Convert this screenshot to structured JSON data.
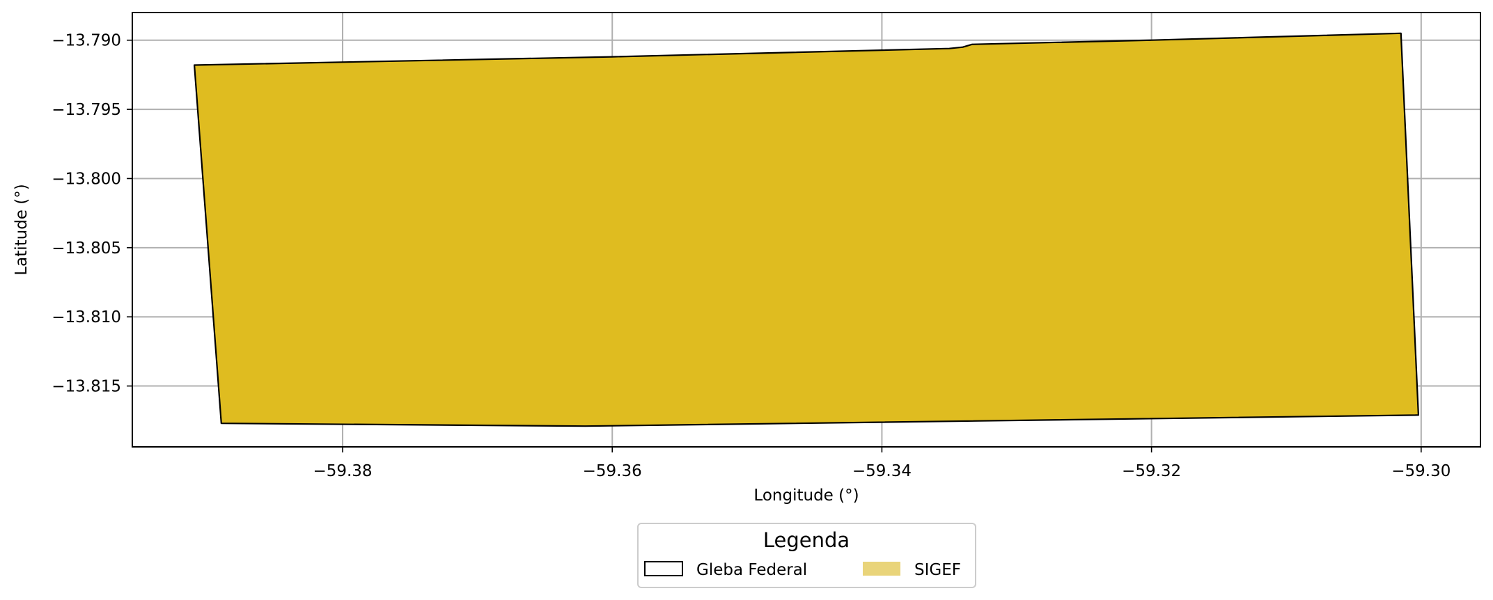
{
  "chart_data": {
    "type": "map",
    "xlabel": "Longitude (°)",
    "ylabel": "Latitude (°)",
    "xlim": [
      -59.3956,
      -59.2956
    ],
    "ylim": [
      -13.8194,
      -13.788
    ],
    "grid": true,
    "xticks": [
      -59.38,
      -59.36,
      -59.34,
      -59.32,
      -59.3
    ],
    "xtick_labels": [
      "−59.38",
      "−59.36",
      "−59.34",
      "−59.32",
      "−59.30"
    ],
    "yticks": [
      -13.79,
      -13.795,
      -13.8,
      -13.805,
      -13.81,
      -13.815
    ],
    "ytick_labels": [
      "−13.790",
      "−13.795",
      "−13.800",
      "−13.805",
      "−13.810",
      "−13.815"
    ],
    "layers": [
      {
        "name": "SIGEF",
        "fill": "#dfbc20",
        "legend_fill": "#e9d47a",
        "polygon": [
          [
            -59.391,
            -13.7918
          ],
          [
            -59.36,
            -13.7912
          ],
          [
            -59.335,
            -13.7906
          ],
          [
            -59.334,
            -13.7905
          ],
          [
            -59.3333,
            -13.7903
          ],
          [
            -59.32,
            -13.79
          ],
          [
            -59.3015,
            -13.7895
          ],
          [
            -59.3002,
            -13.8171
          ],
          [
            -59.362,
            -13.8179
          ],
          [
            -59.389,
            -13.8177
          ],
          [
            -59.391,
            -13.7918
          ]
        ]
      },
      {
        "name": "Gleba Federal",
        "fill": "none",
        "stroke": "#000000",
        "polygon": [
          [
            -59.391,
            -13.7918
          ],
          [
            -59.36,
            -13.7912
          ],
          [
            -59.335,
            -13.7906
          ],
          [
            -59.334,
            -13.7905
          ],
          [
            -59.3333,
            -13.7903
          ],
          [
            -59.32,
            -13.79
          ],
          [
            -59.3015,
            -13.7895
          ],
          [
            -59.3002,
            -13.8171
          ],
          [
            -59.362,
            -13.8179
          ],
          [
            -59.389,
            -13.8177
          ],
          [
            -59.391,
            -13.7918
          ]
        ]
      }
    ],
    "legend": {
      "title": "Legenda",
      "position": "bottom-center",
      "entries": [
        {
          "label": "Gleba Federal",
          "style": "outline",
          "color": "#000000"
        },
        {
          "label": "SIGEF",
          "style": "fill",
          "color": "#e9d47a"
        }
      ]
    }
  }
}
